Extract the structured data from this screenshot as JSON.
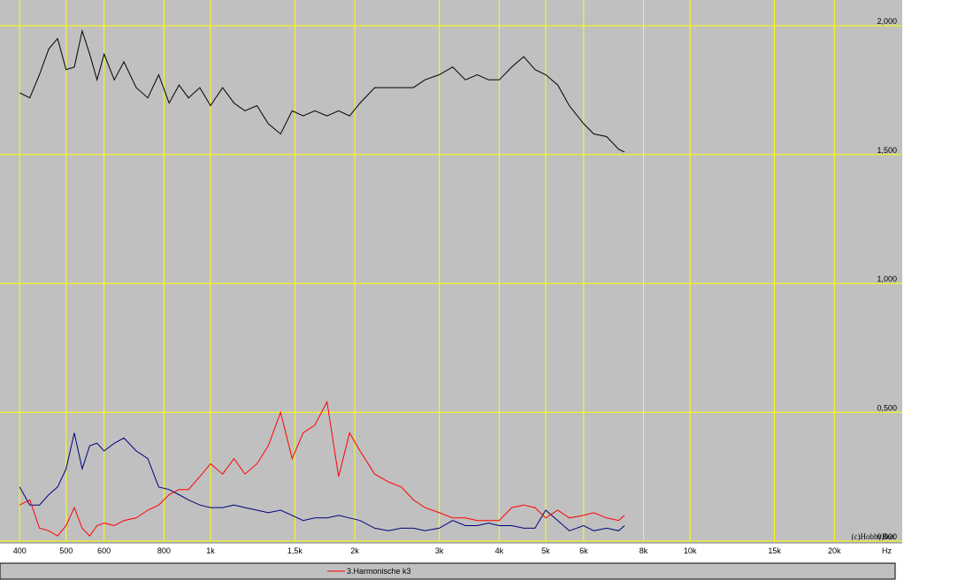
{
  "chart_data": {
    "type": "line",
    "log_x": true,
    "grid": true,
    "grid_color": "#ffff00",
    "background": "#c0c0c0",
    "annotation": "(c)HobbyBox",
    "x_unit": "Hz",
    "xlim": [
      364,
      27700
    ],
    "ylim": [
      0,
      2.1
    ],
    "xticks": [
      400,
      500,
      600,
      800,
      {
        "value": 1000,
        "label": "1k"
      },
      {
        "value": 1500,
        "label": "1,5k"
      },
      {
        "value": 2000,
        "label": "2k"
      },
      {
        "value": 3000,
        "label": "3k"
      },
      {
        "value": 4000,
        "label": "4k"
      },
      {
        "value": 5000,
        "label": "5k"
      },
      {
        "value": 6000,
        "label": "6k"
      },
      {
        "value": 8000,
        "label": "8k"
      },
      {
        "value": 10000,
        "label": "10k"
      },
      {
        "value": 15000,
        "label": "15k"
      },
      {
        "value": 20000,
        "label": "20k"
      }
    ],
    "yticks": [
      {
        "value": 0,
        "label": "0,000"
      },
      {
        "value": 0.5,
        "label": "0,500"
      },
      {
        "value": 1,
        "label": "1,000"
      },
      {
        "value": 1.5,
        "label": "1,500"
      },
      {
        "value": 2,
        "label": "2,000"
      }
    ],
    "x": [
      400,
      420,
      440,
      460,
      480,
      500,
      520,
      540,
      560,
      580,
      600,
      630,
      660,
      700,
      740,
      780,
      820,
      860,
      900,
      950,
      1000,
      1060,
      1120,
      1180,
      1250,
      1320,
      1400,
      1480,
      1560,
      1650,
      1750,
      1850,
      1950,
      2050,
      2200,
      2350,
      2500,
      2650,
      2800,
      3000,
      3200,
      3400,
      3600,
      3800,
      4000,
      4250,
      4500,
      4750,
      5000,
      5300,
      5600,
      6000,
      6300,
      6700,
      7100,
      7300
    ],
    "series": [
      {
        "color": "#000000",
        "values": [
          1.74,
          1.72,
          1.81,
          1.91,
          1.95,
          1.83,
          1.84,
          1.98,
          1.89,
          1.79,
          1.89,
          1.79,
          1.86,
          1.76,
          1.72,
          1.81,
          1.7,
          1.77,
          1.72,
          1.76,
          1.69,
          1.76,
          1.7,
          1.67,
          1.69,
          1.62,
          1.58,
          1.67,
          1.65,
          1.67,
          1.65,
          1.67,
          1.65,
          1.7,
          1.76,
          1.76,
          1.76,
          1.76,
          1.79,
          1.81,
          1.84,
          1.79,
          1.81,
          1.79,
          1.79,
          1.84,
          1.88,
          1.83,
          1.81,
          1.77,
          1.69,
          1.62,
          1.58,
          1.57,
          1.52,
          1.51
        ]
      },
      {
        "color": "#000080",
        "values": [
          0.21,
          0.14,
          0.14,
          0.18,
          0.21,
          0.28,
          0.42,
          0.28,
          0.37,
          0.38,
          0.35,
          0.38,
          0.4,
          0.35,
          0.32,
          0.21,
          0.2,
          0.18,
          0.16,
          0.14,
          0.13,
          0.13,
          0.14,
          0.13,
          0.12,
          0.11,
          0.12,
          0.1,
          0.08,
          0.09,
          0.09,
          0.1,
          0.09,
          0.08,
          0.05,
          0.04,
          0.05,
          0.05,
          0.04,
          0.05,
          0.08,
          0.06,
          0.06,
          0.07,
          0.06,
          0.06,
          0.05,
          0.05,
          0.12,
          0.08,
          0.04,
          0.06,
          0.04,
          0.05,
          0.04,
          0.06
        ]
      },
      {
        "name": "3.Harmonische k3",
        "color": "#ff0000",
        "values": [
          0.14,
          0.16,
          0.05,
          0.04,
          0.02,
          0.06,
          0.13,
          0.05,
          0.02,
          0.06,
          0.07,
          0.06,
          0.08,
          0.09,
          0.12,
          0.14,
          0.18,
          0.2,
          0.2,
          0.25,
          0.3,
          0.26,
          0.32,
          0.26,
          0.3,
          0.37,
          0.5,
          0.32,
          0.42,
          0.45,
          0.54,
          0.25,
          0.42,
          0.35,
          0.26,
          0.23,
          0.21,
          0.16,
          0.13,
          0.11,
          0.09,
          0.09,
          0.08,
          0.08,
          0.08,
          0.13,
          0.14,
          0.13,
          0.09,
          0.12,
          0.09,
          0.1,
          0.11,
          0.09,
          0.08,
          0.1
        ]
      }
    ]
  }
}
